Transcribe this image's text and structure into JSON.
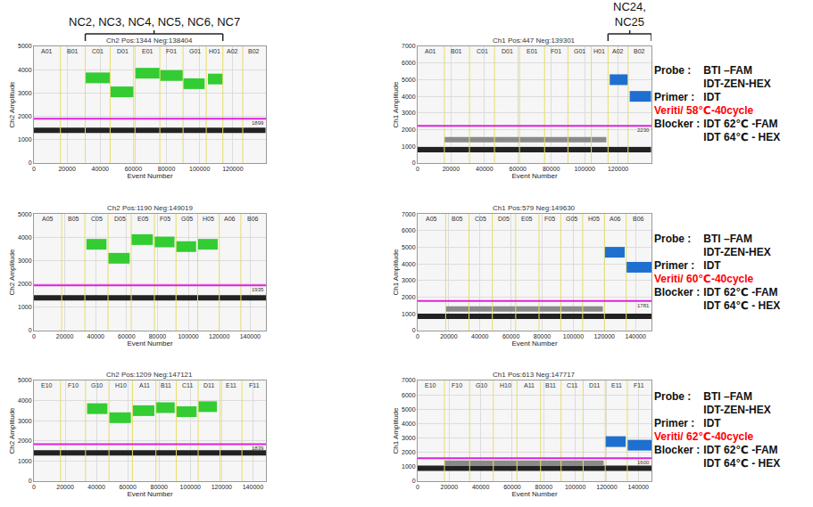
{
  "chart_data": [
    {
      "type": "scatter",
      "title": "Ch2 Pos:1344 Neg:138404",
      "x_label": "Event Number",
      "y_label": "Ch2 Amplitude",
      "xlim": [
        0,
        140000
      ],
      "xticks": [
        0,
        20000,
        40000,
        60000,
        80000,
        100000,
        120000
      ],
      "ylim": [
        0,
        5000
      ],
      "yticks": [
        0,
        1000,
        2000,
        3000,
        4000,
        5000
      ],
      "grid": true,
      "threshold": 1899,
      "wells": [
        {
          "label": "A01",
          "start": 0
        },
        {
          "label": "B01",
          "start": 16000
        },
        {
          "label": "C01",
          "start": 31000
        },
        {
          "label": "D01",
          "start": 46000
        },
        {
          "label": "E01",
          "start": 61000
        },
        {
          "label": "F01",
          "start": 76000
        },
        {
          "label": "G01",
          "start": 90000
        },
        {
          "label": "H01",
          "start": 104000
        },
        {
          "label": "A02",
          "start": 114000
        },
        {
          "label": "B02",
          "start": 126000
        }
      ],
      "group": {
        "text": "NC2, NC3, NC4, NC5, NC6, NC7",
        "from": "C01",
        "to": "H01"
      },
      "series": [
        {
          "color": "#222222",
          "x": [
            0,
            139748
          ],
          "values": [
            1400,
            1400
          ]
        },
        {
          "color": "#33cc33",
          "x": [
            31000,
            46000
          ],
          "values": [
            3650,
            3650
          ]
        },
        {
          "color": "#33cc33",
          "x": [
            46000,
            60000
          ],
          "values": [
            3050,
            3050
          ]
        },
        {
          "color": "#33cc33",
          "x": [
            61000,
            76000
          ],
          "values": [
            3850,
            3850
          ]
        },
        {
          "color": "#33cc33",
          "x": [
            76000,
            90000
          ],
          "values": [
            3750,
            3750
          ]
        },
        {
          "color": "#33cc33",
          "x": [
            90000,
            103000
          ],
          "values": [
            3400,
            3400
          ]
        },
        {
          "color": "#33cc33",
          "x": [
            105000,
            114000
          ],
          "values": [
            3600,
            3600
          ]
        }
      ]
    },
    {
      "type": "scatter",
      "title": "Ch1 Pos:447 Neg:139301",
      "x_label": "Event Number",
      "y_label": "Ch1 Amplitude",
      "xlim": [
        0,
        140000
      ],
      "xticks": [
        0,
        20000,
        40000,
        60000,
        80000,
        100000,
        120000
      ],
      "ylim": [
        0,
        7000
      ],
      "yticks": [
        0,
        1000,
        2000,
        3000,
        4000,
        5000,
        6000,
        7000
      ],
      "grid": true,
      "threshold": 2230,
      "wells": [
        {
          "label": "A01",
          "start": 0
        },
        {
          "label": "B01",
          "start": 16000
        },
        {
          "label": "C01",
          "start": 31000
        },
        {
          "label": "D01",
          "start": 46000
        },
        {
          "label": "E01",
          "start": 61000
        },
        {
          "label": "F01",
          "start": 76000
        },
        {
          "label": "G01",
          "start": 90000
        },
        {
          "label": "H01",
          "start": 104000
        },
        {
          "label": "A02",
          "start": 114000
        },
        {
          "label": "B02",
          "start": 126000
        }
      ],
      "group": {
        "text": "NC24,\nNC25",
        "from": "A02",
        "to": "B02"
      },
      "notes": [
        {
          "label": "Probe :",
          "values": [
            "BTI –FAM",
            "IDT-ZEN-HEX"
          ]
        },
        {
          "label": "Primer :",
          "values": [
            "IDT"
          ]
        },
        {
          "label": "Veriti/ 58℃-40cycle",
          "color": "#ff0000"
        },
        {
          "label": "Blocker  :",
          "values": [
            "IDT 62℃ -FAM",
            "IDT 64℃ - HEX"
          ]
        }
      ],
      "series": [
        {
          "color": "#222222",
          "x": [
            0,
            139748
          ],
          "values": [
            800,
            800
          ]
        },
        {
          "color": "#8a8a8a",
          "x": [
            16000,
            113000
          ],
          "values": [
            1400,
            1400
          ]
        },
        {
          "color": "#1f6fd0",
          "x": [
            115000,
            126000
          ],
          "values": [
            5000,
            5000
          ]
        },
        {
          "color": "#1f6fd0",
          "x": [
            127000,
            139748
          ],
          "values": [
            4000,
            4000
          ]
        }
      ]
    },
    {
      "type": "scatter",
      "title": "Ch2 Pos:1190 Neg:149019",
      "x_label": "Event Number",
      "y_label": "Ch2 Amplitude",
      "xlim": [
        0,
        150209
      ],
      "xticks": [
        0,
        20000,
        40000,
        60000,
        80000,
        100000,
        120000,
        140000
      ],
      "ylim": [
        0,
        5000
      ],
      "yticks": [
        0,
        1000,
        2000,
        3000,
        4000,
        5000
      ],
      "grid": true,
      "threshold": 1935,
      "wells": [
        {
          "label": "A05",
          "start": 0
        },
        {
          "label": "B05",
          "start": 18000
        },
        {
          "label": "C05",
          "start": 33000
        },
        {
          "label": "D05",
          "start": 48000
        },
        {
          "label": "E05",
          "start": 63000
        },
        {
          "label": "F05",
          "start": 78000
        },
        {
          "label": "G05",
          "start": 92000
        },
        {
          "label": "H05",
          "start": 106000
        },
        {
          "label": "A06",
          "start": 120000
        },
        {
          "label": "B06",
          "start": 134000
        }
      ],
      "series": [
        {
          "color": "#222222",
          "x": [
            0,
            150209
          ],
          "values": [
            1400,
            1400
          ]
        },
        {
          "color": "#33cc33",
          "x": [
            34000,
            47000
          ],
          "values": [
            3700,
            3700
          ]
        },
        {
          "color": "#33cc33",
          "x": [
            48000,
            62000
          ],
          "values": [
            3100,
            3100
          ]
        },
        {
          "color": "#33cc33",
          "x": [
            63000,
            77000
          ],
          "values": [
            3900,
            3900
          ]
        },
        {
          "color": "#33cc33",
          "x": [
            78000,
            91000
          ],
          "values": [
            3800,
            3800
          ]
        },
        {
          "color": "#33cc33",
          "x": [
            92000,
            105000
          ],
          "values": [
            3600,
            3600
          ]
        },
        {
          "color": "#33cc33",
          "x": [
            106000,
            119000
          ],
          "values": [
            3700,
            3700
          ]
        }
      ]
    },
    {
      "type": "scatter",
      "title": "Ch1 Pos:579 Neg:149630",
      "x_label": "Event Number",
      "y_label": "Ch1 Amplitude",
      "xlim": [
        0,
        150209
      ],
      "xticks": [
        0,
        20000,
        40000,
        60000,
        80000,
        100000,
        120000,
        140000
      ],
      "ylim": [
        0,
        7000
      ],
      "yticks": [
        0,
        1000,
        2000,
        3000,
        4000,
        5000,
        6000,
        7000
      ],
      "grid": true,
      "threshold": 1781,
      "wells": [
        {
          "label": "A05",
          "start": 0
        },
        {
          "label": "B05",
          "start": 18000
        },
        {
          "label": "C05",
          "start": 33000
        },
        {
          "label": "D05",
          "start": 48000
        },
        {
          "label": "E05",
          "start": 63000
        },
        {
          "label": "F05",
          "start": 78000
        },
        {
          "label": "G05",
          "start": 92000
        },
        {
          "label": "H05",
          "start": 106000
        },
        {
          "label": "A06",
          "start": 120000
        },
        {
          "label": "B06",
          "start": 134000
        }
      ],
      "notes": [
        {
          "label": "Probe :",
          "values": [
            "BTI –FAM",
            "IDT-ZEN-HEX"
          ]
        },
        {
          "label": "Primer :",
          "values": [
            "IDT"
          ]
        },
        {
          "label": "Veriti/ 60℃-40cycle",
          "color": "#ff0000"
        },
        {
          "label": "Blocker  :",
          "values": [
            "IDT 62℃ -FAM",
            "IDT 64℃ - HEX"
          ]
        }
      ],
      "series": [
        {
          "color": "#222222",
          "x": [
            0,
            150209
          ],
          "values": [
            850,
            850
          ]
        },
        {
          "color": "#8a8a8a",
          "x": [
            18000,
            119000
          ],
          "values": [
            1300,
            1300
          ]
        },
        {
          "color": "#1f6fd0",
          "x": [
            120000,
            133000
          ],
          "values": [
            4700,
            4700
          ]
        },
        {
          "color": "#1f6fd0",
          "x": [
            134000,
            150209
          ],
          "values": [
            3800,
            3800
          ]
        }
      ]
    },
    {
      "type": "scatter",
      "title": "Ch2 Pos:1209 Neg:147121",
      "x_label": "Event Number",
      "y_label": "Ch2 Amplitude",
      "xlim": [
        0,
        148330
      ],
      "xticks": [
        0,
        20000,
        40000,
        60000,
        80000,
        100000,
        120000,
        140000
      ],
      "ylim": [
        0,
        5000
      ],
      "yticks": [
        0,
        1000,
        2000,
        3000,
        4000,
        5000
      ],
      "grid": true,
      "threshold": 1839,
      "wells": [
        {
          "label": "E10",
          "start": 0
        },
        {
          "label": "F10",
          "start": 17000
        },
        {
          "label": "G10",
          "start": 33000
        },
        {
          "label": "H10",
          "start": 48000
        },
        {
          "label": "A11",
          "start": 63000
        },
        {
          "label": "B11",
          "start": 78000
        },
        {
          "label": "C11",
          "start": 91000
        },
        {
          "label": "D11",
          "start": 105000
        },
        {
          "label": "E11",
          "start": 119000
        },
        {
          "label": "F11",
          "start": 133000
        }
      ],
      "series": [
        {
          "color": "#222222",
          "x": [
            0,
            148330
          ],
          "values": [
            1400,
            1400
          ]
        },
        {
          "color": "#33cc33",
          "x": [
            34000,
            47000
          ],
          "values": [
            3600,
            3600
          ]
        },
        {
          "color": "#33cc33",
          "x": [
            48000,
            62000
          ],
          "values": [
            3150,
            3150
          ]
        },
        {
          "color": "#33cc33",
          "x": [
            63000,
            77000
          ],
          "values": [
            3500,
            3500
          ]
        },
        {
          "color": "#33cc33",
          "x": [
            78000,
            90000
          ],
          "values": [
            3650,
            3650
          ]
        },
        {
          "color": "#33cc33",
          "x": [
            91000,
            104000
          ],
          "values": [
            3450,
            3450
          ]
        },
        {
          "color": "#33cc33",
          "x": [
            105000,
            117000
          ],
          "values": [
            3700,
            3700
          ]
        }
      ]
    },
    {
      "type": "scatter",
      "title": "Ch1 Pos:613 Neg:147717",
      "x_label": "Event Number",
      "y_label": "Ch1 Amplitude",
      "xlim": [
        0,
        148330
      ],
      "xticks": [
        0,
        20000,
        40000,
        60000,
        80000,
        100000,
        120000,
        140000
      ],
      "ylim": [
        0,
        7000
      ],
      "yticks": [
        0,
        1000,
        2000,
        3000,
        4000,
        5000,
        6000,
        7000
      ],
      "grid": true,
      "threshold": 1600,
      "wells": [
        {
          "label": "E10",
          "start": 0
        },
        {
          "label": "F10",
          "start": 17000
        },
        {
          "label": "G10",
          "start": 33000
        },
        {
          "label": "H10",
          "start": 48000
        },
        {
          "label": "A11",
          "start": 63000
        },
        {
          "label": "B11",
          "start": 78000
        },
        {
          "label": "C11",
          "start": 91000
        },
        {
          "label": "D11",
          "start": 105000
        },
        {
          "label": "E11",
          "start": 119000
        },
        {
          "label": "F11",
          "start": 133000
        }
      ],
      "notes": [
        {
          "label": "Probe :",
          "values": [
            "BTI –FAM",
            "IDT-ZEN-HEX"
          ]
        },
        {
          "label": "Primer :",
          "values": [
            "IDT"
          ]
        },
        {
          "label": "Veriti/ 62℃-40cycle",
          "color": "#ff0000"
        },
        {
          "label": "Blocker  :",
          "values": [
            "IDT 62℃ -FAM",
            "IDT 64℃ - HEX"
          ]
        }
      ],
      "series": [
        {
          "color": "#222222",
          "x": [
            0,
            148330
          ],
          "values": [
            900,
            900
          ]
        },
        {
          "color": "#8a8a8a",
          "x": [
            17000,
            118000
          ],
          "values": [
            1250,
            1250
          ]
        },
        {
          "color": "#1f6fd0",
          "x": [
            119000,
            132000
          ],
          "values": [
            2750,
            2750
          ]
        },
        {
          "color": "#1f6fd0",
          "x": [
            133000,
            148330
          ],
          "values": [
            2500,
            2500
          ]
        }
      ]
    }
  ]
}
